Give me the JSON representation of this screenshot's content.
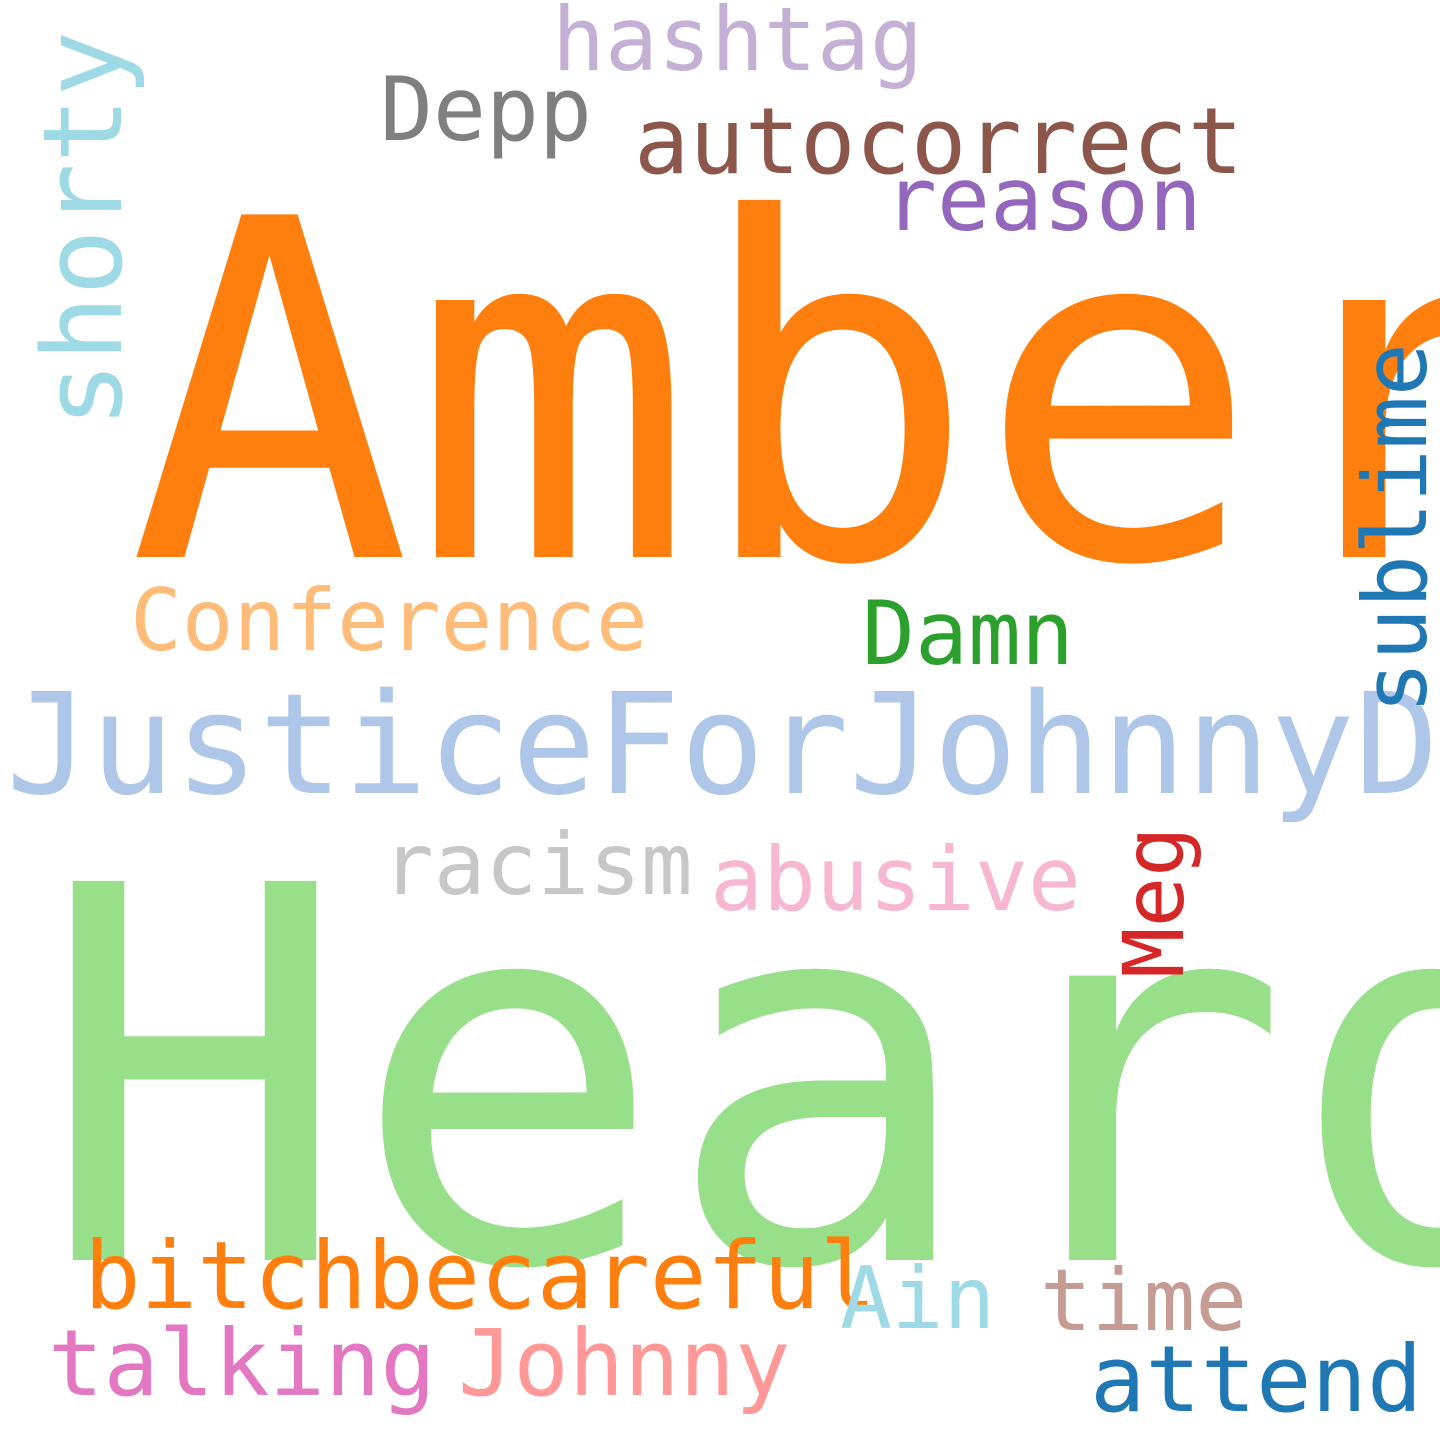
{
  "words": {
    "amber": {
      "text": "Amber",
      "color": "#ff7f0e"
    },
    "heard": {
      "text": "Heard",
      "color": "#98df8a"
    },
    "justice": {
      "text": "JusticeForJohnnyDepp",
      "color": "#aec7e8"
    },
    "shorty": {
      "text": "shorty",
      "color": "#9edae5"
    },
    "sublime": {
      "text": "sublime",
      "color": "#1f77b4"
    },
    "meg": {
      "text": "Meg",
      "color": "#d62728"
    },
    "hashtag": {
      "text": "hashtag",
      "color": "#c5b0d5"
    },
    "depp": {
      "text": "Depp",
      "color": "#7f7f7f"
    },
    "autocorrect": {
      "text": "autocorrect",
      "color": "#8c564b"
    },
    "reason": {
      "text": "reason",
      "color": "#9467bd"
    },
    "conference": {
      "text": "Conference",
      "color": "#ffbb78"
    },
    "damn": {
      "text": "Damn",
      "color": "#2ca02c"
    },
    "racism": {
      "text": "racism",
      "color": "#c7c7c7"
    },
    "abusive": {
      "text": "abusive",
      "color": "#f7b6d2"
    },
    "bitchbecareful": {
      "text": "bitchbecareful",
      "color": "#ff7f0e"
    },
    "ain": {
      "text": "Ain",
      "color": "#9edae5"
    },
    "time": {
      "text": "time",
      "color": "#c49c94"
    },
    "talking": {
      "text": "talking",
      "color": "#e377c2"
    },
    "johnny": {
      "text": "Johnny",
      "color": "#ff9896"
    },
    "attend": {
      "text": "attend",
      "color": "#1f77b4"
    }
  }
}
